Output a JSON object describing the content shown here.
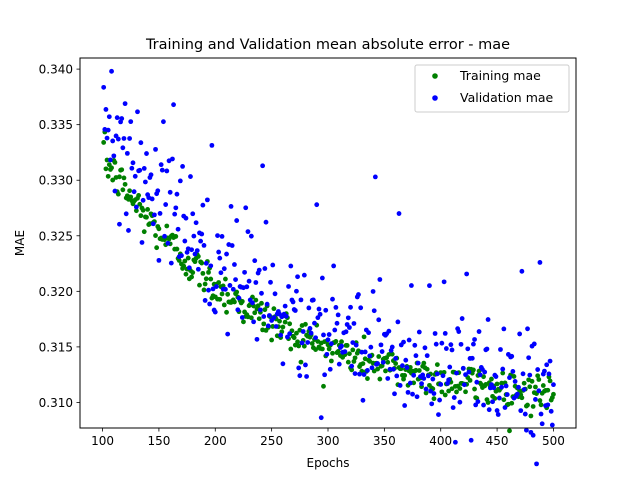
{
  "chart_data": {
    "type": "scatter",
    "title": "Training and Validation mean absolute error - mae",
    "xlabel": "Epochs",
    "ylabel": "MAE",
    "xlim": [
      80,
      520
    ],
    "ylim": [
      0.3077,
      0.341
    ],
    "xticks": [
      100,
      150,
      200,
      250,
      300,
      350,
      400,
      450,
      500
    ],
    "yticks": [
      0.31,
      0.315,
      0.32,
      0.325,
      0.33,
      0.335,
      0.34
    ],
    "ytick_labels": [
      "0.310",
      "0.315",
      "0.320",
      "0.325",
      "0.330",
      "0.335",
      "0.340"
    ],
    "legend_position": "top-right",
    "grid": false,
    "series": [
      {
        "name": "Training mae",
        "color": "#008000",
        "model": {
          "x_start": 101,
          "x_end": 500,
          "base": 0.3095,
          "amplitude": 0.0225,
          "decay": 140,
          "noise": 0.0009
        }
      },
      {
        "name": "Validation mae",
        "color": "#0000ff",
        "model": {
          "x_start": 101,
          "x_end": 500,
          "base": 0.3098,
          "amplitude": 0.025,
          "decay": 145,
          "noise": 0.0025,
          "spike_prob": 0.1,
          "spike_size": 0.007
        }
      }
    ],
    "notable_points": [
      {
        "series": "Validation mae",
        "x": 108,
        "y": 0.3398
      },
      {
        "series": "Validation mae",
        "x": 163,
        "y": 0.3368
      },
      {
        "series": "Validation mae",
        "x": 242,
        "y": 0.3313
      },
      {
        "series": "Validation mae",
        "x": 290,
        "y": 0.3278
      },
      {
        "series": "Validation mae",
        "x": 342,
        "y": 0.3303
      },
      {
        "series": "Validation mae",
        "x": 363,
        "y": 0.327
      },
      {
        "series": "Validation mae",
        "x": 472,
        "y": 0.3218
      },
      {
        "series": "Validation mae",
        "x": 488,
        "y": 0.3226
      },
      {
        "series": "Validation mae",
        "x": 498,
        "y": 0.3092
      },
      {
        "series": "Training mae",
        "x": 101,
        "y": 0.3334
      }
    ]
  }
}
